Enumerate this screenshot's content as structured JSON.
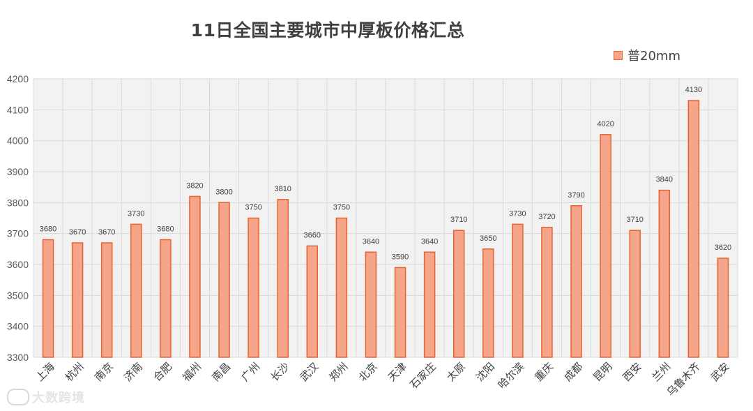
{
  "chart_data": {
    "type": "bar",
    "title": "11日全国主要城市中厚板价格汇总",
    "categories": [
      "上海",
      "杭州",
      "南京",
      "济南",
      "合肥",
      "福州",
      "南昌",
      "广州",
      "长沙",
      "武汉",
      "郑州",
      "北京",
      "天津",
      "石家庄",
      "太原",
      "沈阳",
      "哈尔滨",
      "重庆",
      "成都",
      "昆明",
      "西安",
      "兰州",
      "乌鲁木齐",
      "武安"
    ],
    "series": [
      {
        "name": "普20mm",
        "values": [
          3680,
          3670,
          3670,
          3730,
          3680,
          3820,
          3800,
          3750,
          3810,
          3660,
          3750,
          3640,
          3590,
          3640,
          3710,
          3650,
          3730,
          3720,
          3790,
          4020,
          3710,
          3840,
          4130,
          3620
        ]
      }
    ],
    "ylim": [
      3300,
      4200
    ],
    "yticks": [
      3300,
      3400,
      3500,
      3600,
      3700,
      3800,
      3900,
      4000,
      4100,
      4200
    ],
    "xlabel": "",
    "ylabel": "",
    "grid": true,
    "legend": "top-right",
    "colors": {
      "bar_fill": "#f4a58a",
      "bar_stroke": "#e8622f",
      "plot_bg": "#f2f2f2",
      "grid": "#d9d9d9"
    }
  },
  "watermark": {
    "text": "大数跨境",
    "icon": "logo-icon"
  }
}
